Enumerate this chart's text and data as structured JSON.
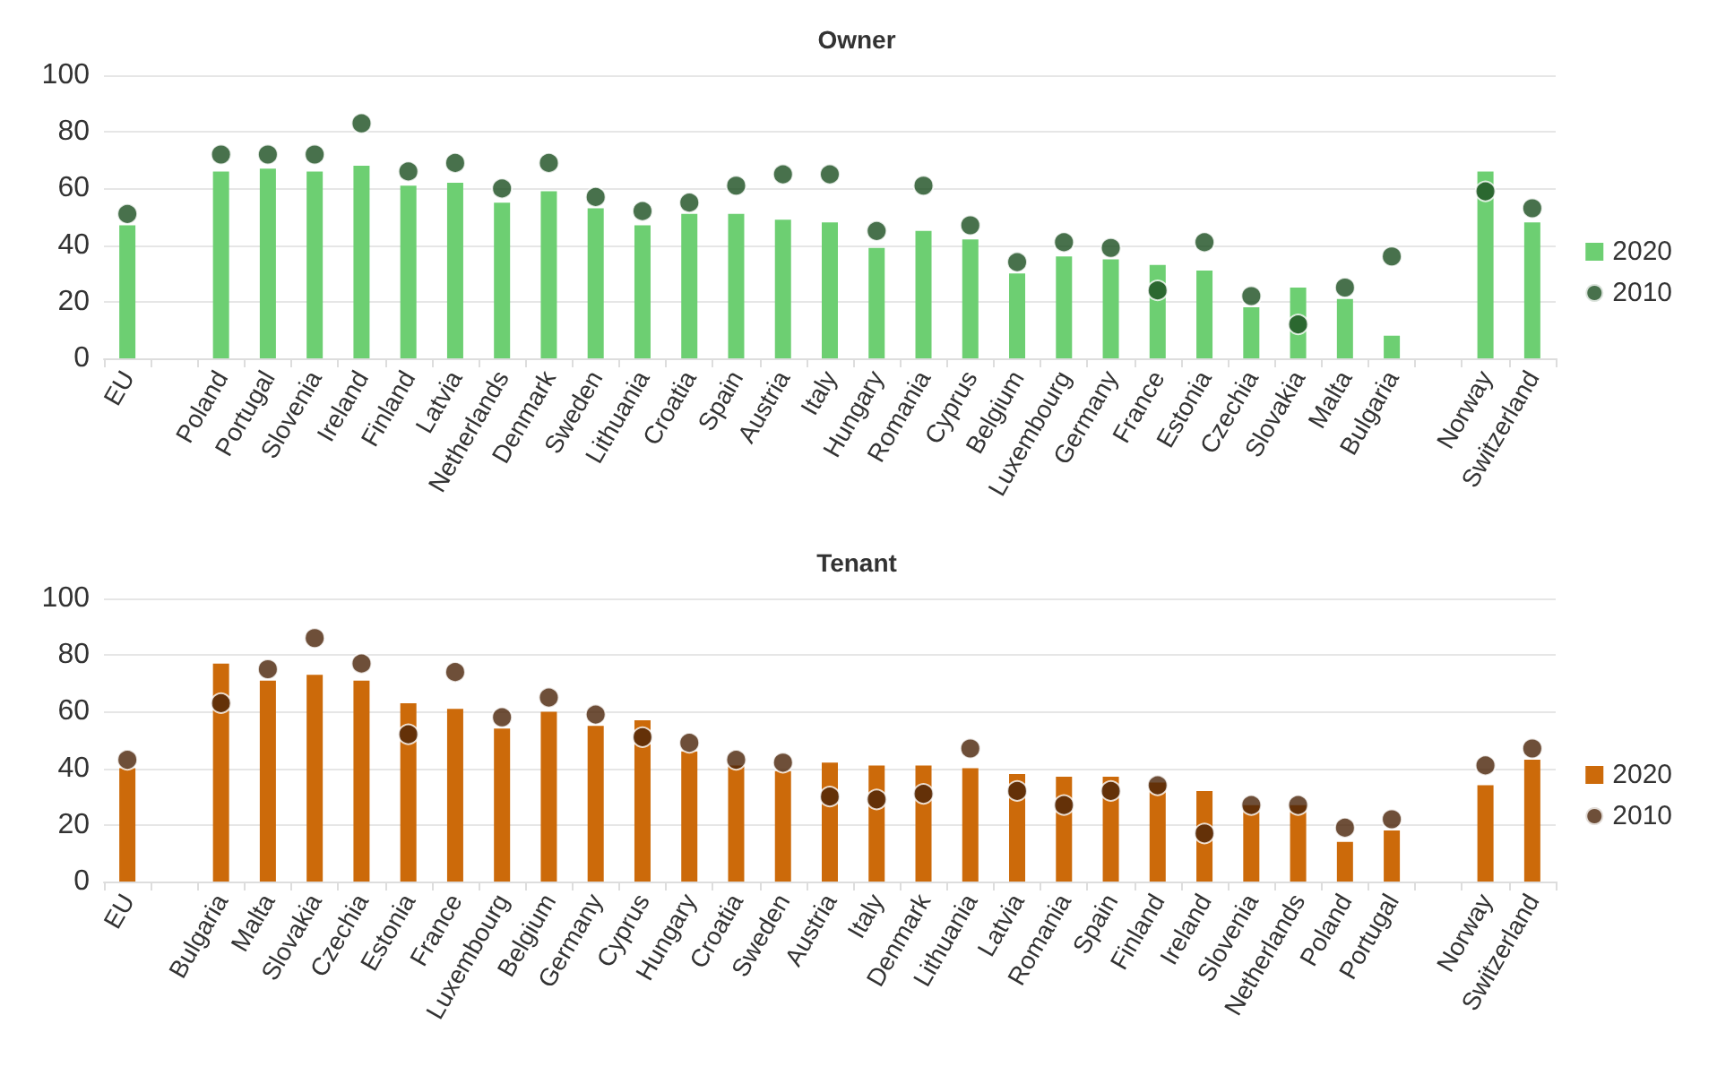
{
  "chart_data": [
    {
      "type": "bar",
      "title": "Owner",
      "categories": [
        "EU",
        null,
        "Poland",
        "Portugal",
        "Slovenia",
        "Ireland",
        "Finland",
        "Latvia",
        "Netherlands",
        "Denmark",
        "Sweden",
        "Lithuania",
        "Croatia",
        "Spain",
        "Austria",
        "Italy",
        "Hungary",
        "Romania",
        "Cyprus",
        "Belgium",
        "Luxembourg",
        "Germany",
        "France",
        "Estonia",
        "Czechia",
        "Slovakia",
        "Malta",
        "Bulgaria",
        null,
        "Norway",
        "Switzerland"
      ],
      "series": [
        {
          "name": "2020",
          "color": "#6dcf72",
          "values": [
            47,
            null,
            66,
            67,
            66,
            68,
            61,
            62,
            55,
            59,
            53,
            47,
            51,
            51,
            49,
            48,
            39,
            45,
            42,
            30,
            36,
            35,
            33,
            31,
            18,
            25,
            21,
            8,
            null,
            66,
            48
          ]
        },
        {
          "name": "2010",
          "type": "scatter",
          "color": "#1a4d1f",
          "values": [
            51,
            null,
            72,
            72,
            72,
            83,
            66,
            69,
            60,
            69,
            57,
            52,
            55,
            61,
            65,
            65,
            45,
            61,
            47,
            34,
            41,
            39,
            24,
            41,
            22,
            12,
            25,
            36,
            null,
            59,
            53
          ]
        }
      ],
      "ylim": [
        0,
        100
      ],
      "yticks": [
        0,
        20,
        40,
        60,
        80,
        100
      ],
      "grid": "y",
      "legend": "right",
      "marker": "circle"
    },
    {
      "type": "bar",
      "title": "Tenant",
      "categories": [
        "EU",
        null,
        "Bulgaria",
        "Malta",
        "Slovakia",
        "Czechia",
        "Estonia",
        "France",
        "Luxembourg",
        "Belgium",
        "Germany",
        "Cyprus",
        "Hungary",
        "Croatia",
        "Sweden",
        "Austria",
        "Italy",
        "Denmark",
        "Lithuania",
        "Latvia",
        "Romania",
        "Spain",
        "Finland",
        "Ireland",
        "Slovenia",
        "Netherlands",
        "Poland",
        "Portugal",
        null,
        "Norway",
        "Switzerland"
      ],
      "series": [
        {
          "name": "2020",
          "color": "#cc6a0a",
          "values": [
            40,
            null,
            77,
            71,
            73,
            71,
            63,
            61,
            54,
            60,
            55,
            57,
            46,
            41,
            39,
            42,
            41,
            41,
            40,
            38,
            37,
            37,
            35,
            32,
            27,
            27,
            14,
            18,
            null,
            34,
            43
          ]
        },
        {
          "name": "2010",
          "type": "scatter",
          "color": "#4a2308",
          "values": [
            43,
            null,
            63,
            75,
            86,
            77,
            52,
            74,
            58,
            65,
            59,
            51,
            49,
            43,
            42,
            30,
            29,
            31,
            47,
            32,
            27,
            32,
            34,
            17,
            27,
            27,
            19,
            22,
            null,
            41,
            47
          ]
        }
      ],
      "ylim": [
        0,
        100
      ],
      "yticks": [
        0,
        20,
        40,
        60,
        80,
        100
      ],
      "grid": "y",
      "legend": "right",
      "marker": "circle"
    }
  ]
}
